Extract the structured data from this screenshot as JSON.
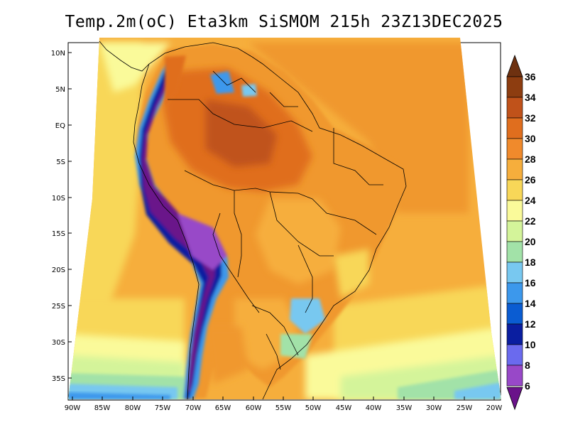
{
  "title": "Temp.2m(oC) Eta3km SiSMOM 215h 23Z13DEC2025",
  "map": {
    "lat_labels": [
      "10N",
      "5N",
      "EQ",
      "5S",
      "10S",
      "15S",
      "20S",
      "25S",
      "30S",
      "35S"
    ],
    "lon_labels": [
      "90W",
      "85W",
      "80W",
      "75W",
      "70W",
      "65W",
      "60W",
      "55W",
      "50W",
      "45W",
      "40W",
      "35W",
      "30W",
      "25W",
      "20W"
    ],
    "variable": "2m temperature",
    "units": "oC"
  },
  "colorbar": {
    "labels": [
      "36",
      "34",
      "32",
      "30",
      "28",
      "26",
      "24",
      "22",
      "20",
      "18",
      "16",
      "14",
      "12",
      "10",
      "8",
      "6"
    ],
    "colors": [
      "#6e3110",
      "#8d3d10",
      "#c0521a",
      "#e06e1e",
      "#f08a2c",
      "#f6ae3c",
      "#f8d758",
      "#fafa9a",
      "#d4f49a",
      "#a2e2a8",
      "#78c8f0",
      "#3c98ec",
      "#0a5cd2",
      "#0a1ea0",
      "#6a6aee",
      "#9848c8",
      "#6a128a"
    ],
    "top_arrow_color": "#6e3110",
    "bottom_arrow_color": "#6a128a"
  }
}
